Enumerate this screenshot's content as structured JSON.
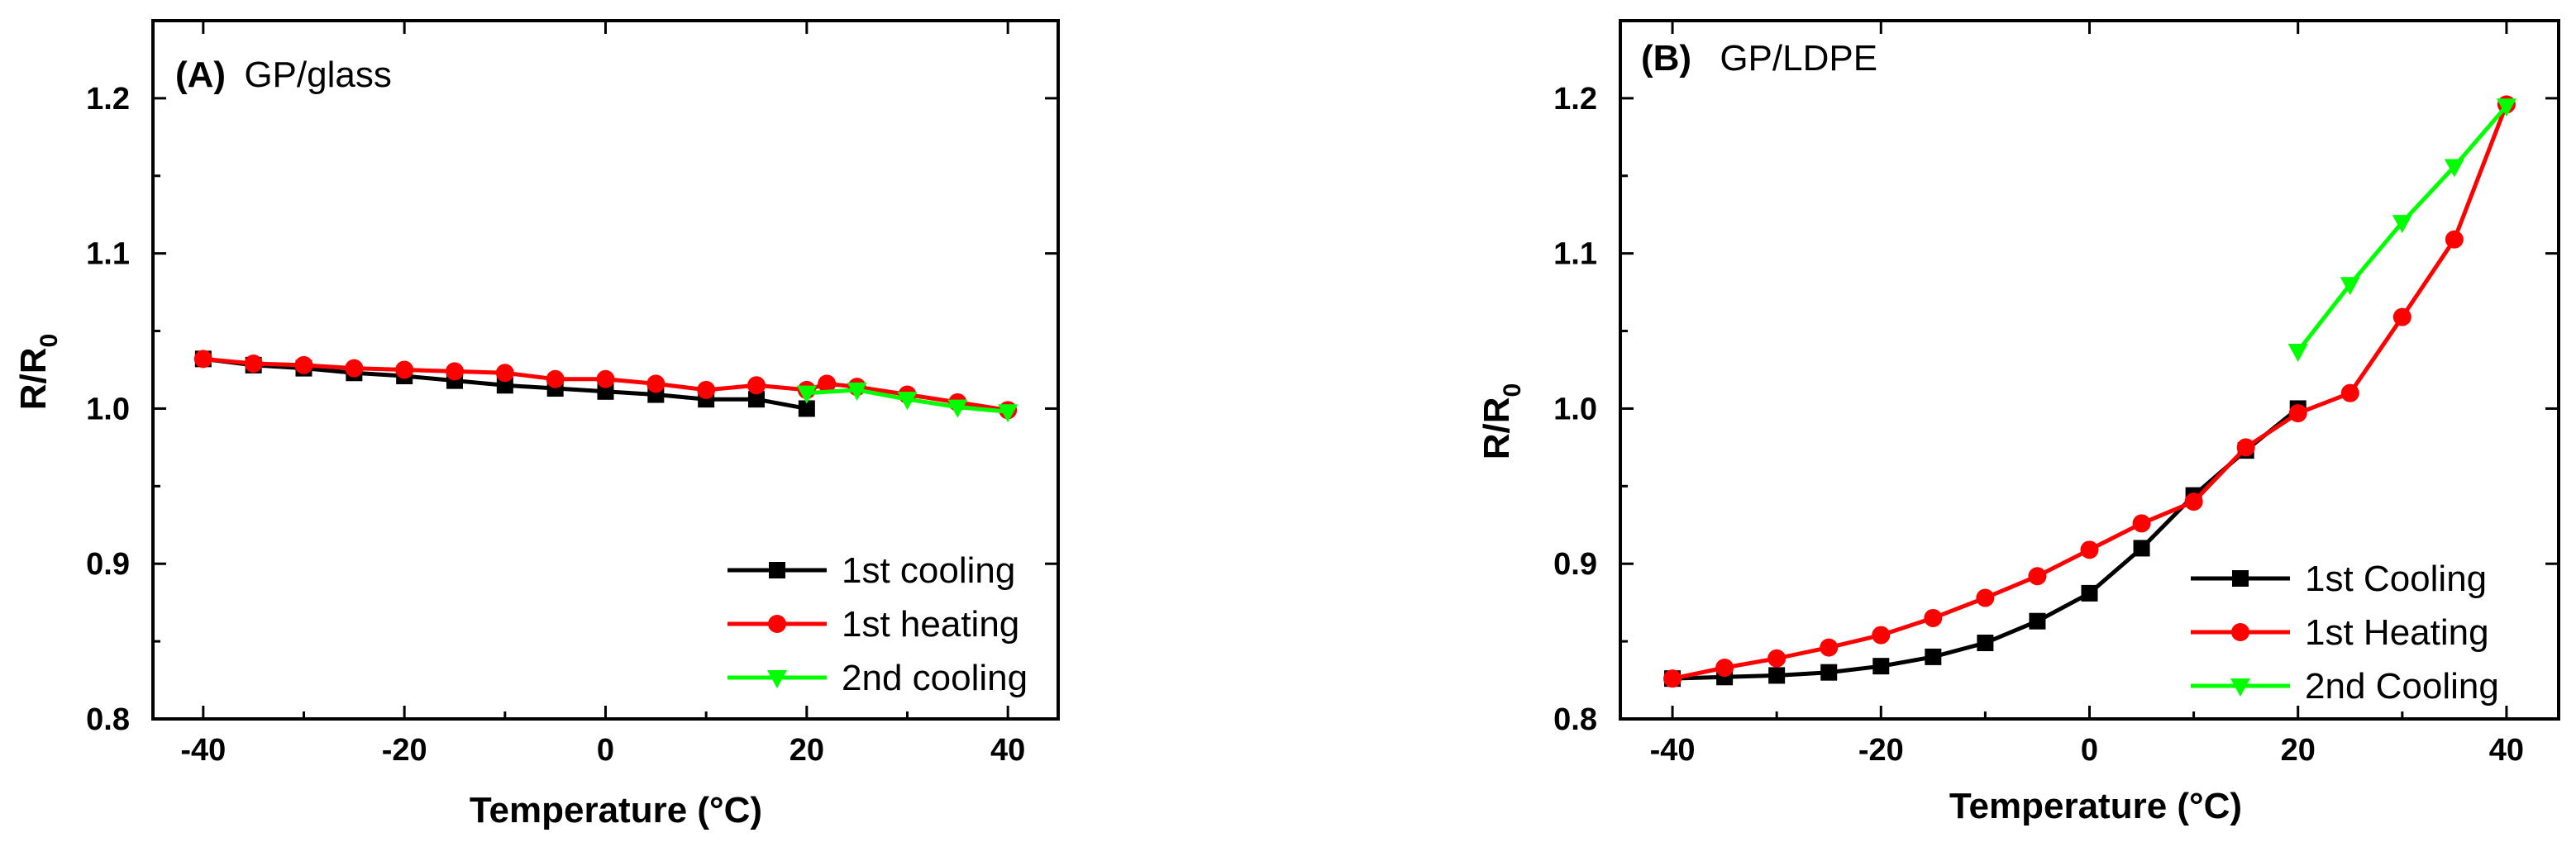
{
  "chart_data": [
    {
      "type": "line",
      "panel_id": "(A)",
      "title": "GP/glass",
      "xlabel": "Temperature (°C)",
      "ylabel": "R/R",
      "ylabel_subscript": "0",
      "xlim": [
        -45,
        45
      ],
      "ylim": [
        0.8,
        1.25
      ],
      "xticks": [
        -40,
        -20,
        0,
        20,
        40
      ],
      "yticks": [
        0.8,
        0.9,
        1.0,
        1.1,
        1.2
      ],
      "ytick_labels": [
        "0.8",
        "0.9",
        "1.0",
        "1.1",
        "1.2"
      ],
      "legend_position": "bottom-right",
      "series": [
        {
          "name": "1st cooling",
          "color": "#000000",
          "marker": "square",
          "points": [
            [
              -40,
              1.032
            ],
            [
              -35,
              1.028
            ],
            [
              -30,
              1.026
            ],
            [
              -25,
              1.023
            ],
            [
              -20,
              1.021
            ],
            [
              -15,
              1.018
            ],
            [
              -10,
              1.015
            ],
            [
              -5,
              1.013
            ],
            [
              0,
              1.011
            ],
            [
              5,
              1.009
            ],
            [
              10,
              1.006
            ],
            [
              15,
              1.006
            ],
            [
              20,
              1.0
            ]
          ]
        },
        {
          "name": "1st heating",
          "color": "#ff0000",
          "marker": "circle",
          "points": [
            [
              -40,
              1.032
            ],
            [
              -35,
              1.029
            ],
            [
              -30,
              1.028
            ],
            [
              -25,
              1.026
            ],
            [
              -20,
              1.025
            ],
            [
              -15,
              1.024
            ],
            [
              -10,
              1.023
            ],
            [
              -5,
              1.019
            ],
            [
              0,
              1.019
            ],
            [
              5,
              1.016
            ],
            [
              10,
              1.012
            ],
            [
              15,
              1.015
            ],
            [
              20,
              1.012
            ],
            [
              22,
              1.016
            ],
            [
              25,
              1.014
            ],
            [
              30,
              1.009
            ],
            [
              35,
              1.004
            ],
            [
              40,
              0.999
            ]
          ]
        },
        {
          "name": "2nd cooling",
          "color": "#00ff00",
          "marker": "triangle-down",
          "points": [
            [
              20,
              1.01
            ],
            [
              25,
              1.012
            ],
            [
              30,
              1.006
            ],
            [
              35,
              1.001
            ],
            [
              40,
              0.998
            ]
          ]
        }
      ]
    },
    {
      "type": "line",
      "panel_id": "(B)",
      "title": "GP/LDPE",
      "xlabel": "Temperature (°C)",
      "ylabel": "R/R",
      "ylabel_subscript": "0",
      "xlim": [
        -45,
        45
      ],
      "ylim": [
        0.8,
        1.25
      ],
      "xticks": [
        -40,
        -20,
        0,
        20,
        40
      ],
      "yticks": [
        0.8,
        0.9,
        1.0,
        1.1,
        1.2
      ],
      "ytick_labels": [
        "0.8",
        "0.9",
        "1.0",
        "1.1",
        "1.2"
      ],
      "legend_position": "bottom-right",
      "series": [
        {
          "name": "1st Cooling",
          "color": "#000000",
          "marker": "square",
          "points": [
            [
              -40,
              0.826
            ],
            [
              -35,
              0.827
            ],
            [
              -30,
              0.828
            ],
            [
              -25,
              0.83
            ],
            [
              -20,
              0.834
            ],
            [
              -15,
              0.84
            ],
            [
              -10,
              0.849
            ],
            [
              -5,
              0.863
            ],
            [
              0,
              0.881
            ],
            [
              5,
              0.91
            ],
            [
              10,
              0.944
            ],
            [
              15,
              0.973
            ],
            [
              20,
              1.0
            ]
          ]
        },
        {
          "name": "1st Heating",
          "color": "#ff0000",
          "marker": "circle",
          "points": [
            [
              -40,
              0.826
            ],
            [
              -35,
              0.833
            ],
            [
              -30,
              0.839
            ],
            [
              -25,
              0.846
            ],
            [
              -20,
              0.854
            ],
            [
              -15,
              0.865
            ],
            [
              -10,
              0.878
            ],
            [
              -5,
              0.892
            ],
            [
              0,
              0.909
            ],
            [
              5,
              0.926
            ],
            [
              10,
              0.94
            ],
            [
              15,
              0.975
            ],
            [
              20,
              0.997
            ],
            [
              25,
              1.01
            ],
            [
              30,
              1.059
            ],
            [
              35,
              1.109
            ],
            [
              40,
              1.196
            ]
          ]
        },
        {
          "name": "2nd Cooling",
          "color": "#00ff00",
          "marker": "triangle-down",
          "points": [
            [
              20,
              1.037
            ],
            [
              25,
              1.08
            ],
            [
              30,
              1.12
            ],
            [
              35,
              1.156
            ],
            [
              40,
              1.195
            ]
          ]
        }
      ]
    }
  ]
}
